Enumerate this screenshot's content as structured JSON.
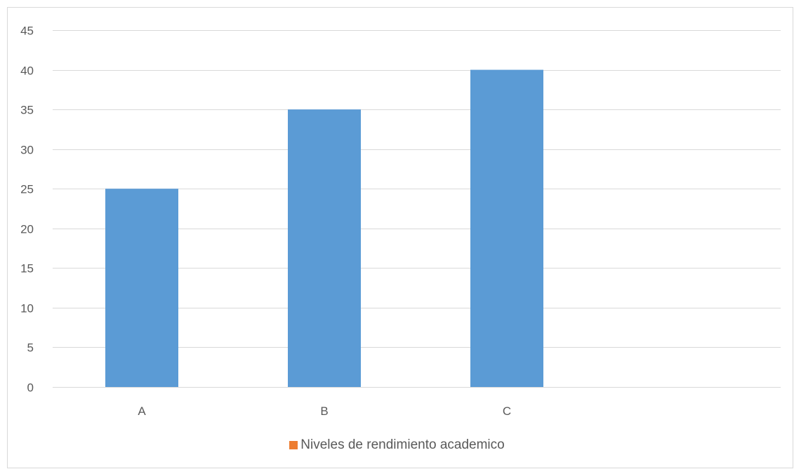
{
  "colors": {
    "bar": "#5b9bd5",
    "legend_swatch": "#ed7d31",
    "grid": "#d9d9d9",
    "tick_text": "#595959"
  },
  "chart_data": {
    "type": "bar",
    "title": "",
    "xlabel": "",
    "ylabel": "",
    "categories": [
      "A",
      "B",
      "C"
    ],
    "series": [
      {
        "name": "Niveles de rendimiento academico",
        "values": [
          25,
          35,
          40
        ]
      }
    ],
    "ylim": [
      0,
      45
    ],
    "yticks": [
      0,
      5,
      10,
      15,
      20,
      25,
      30,
      35,
      40,
      45
    ],
    "grid": true,
    "legend_position": "bottom"
  }
}
